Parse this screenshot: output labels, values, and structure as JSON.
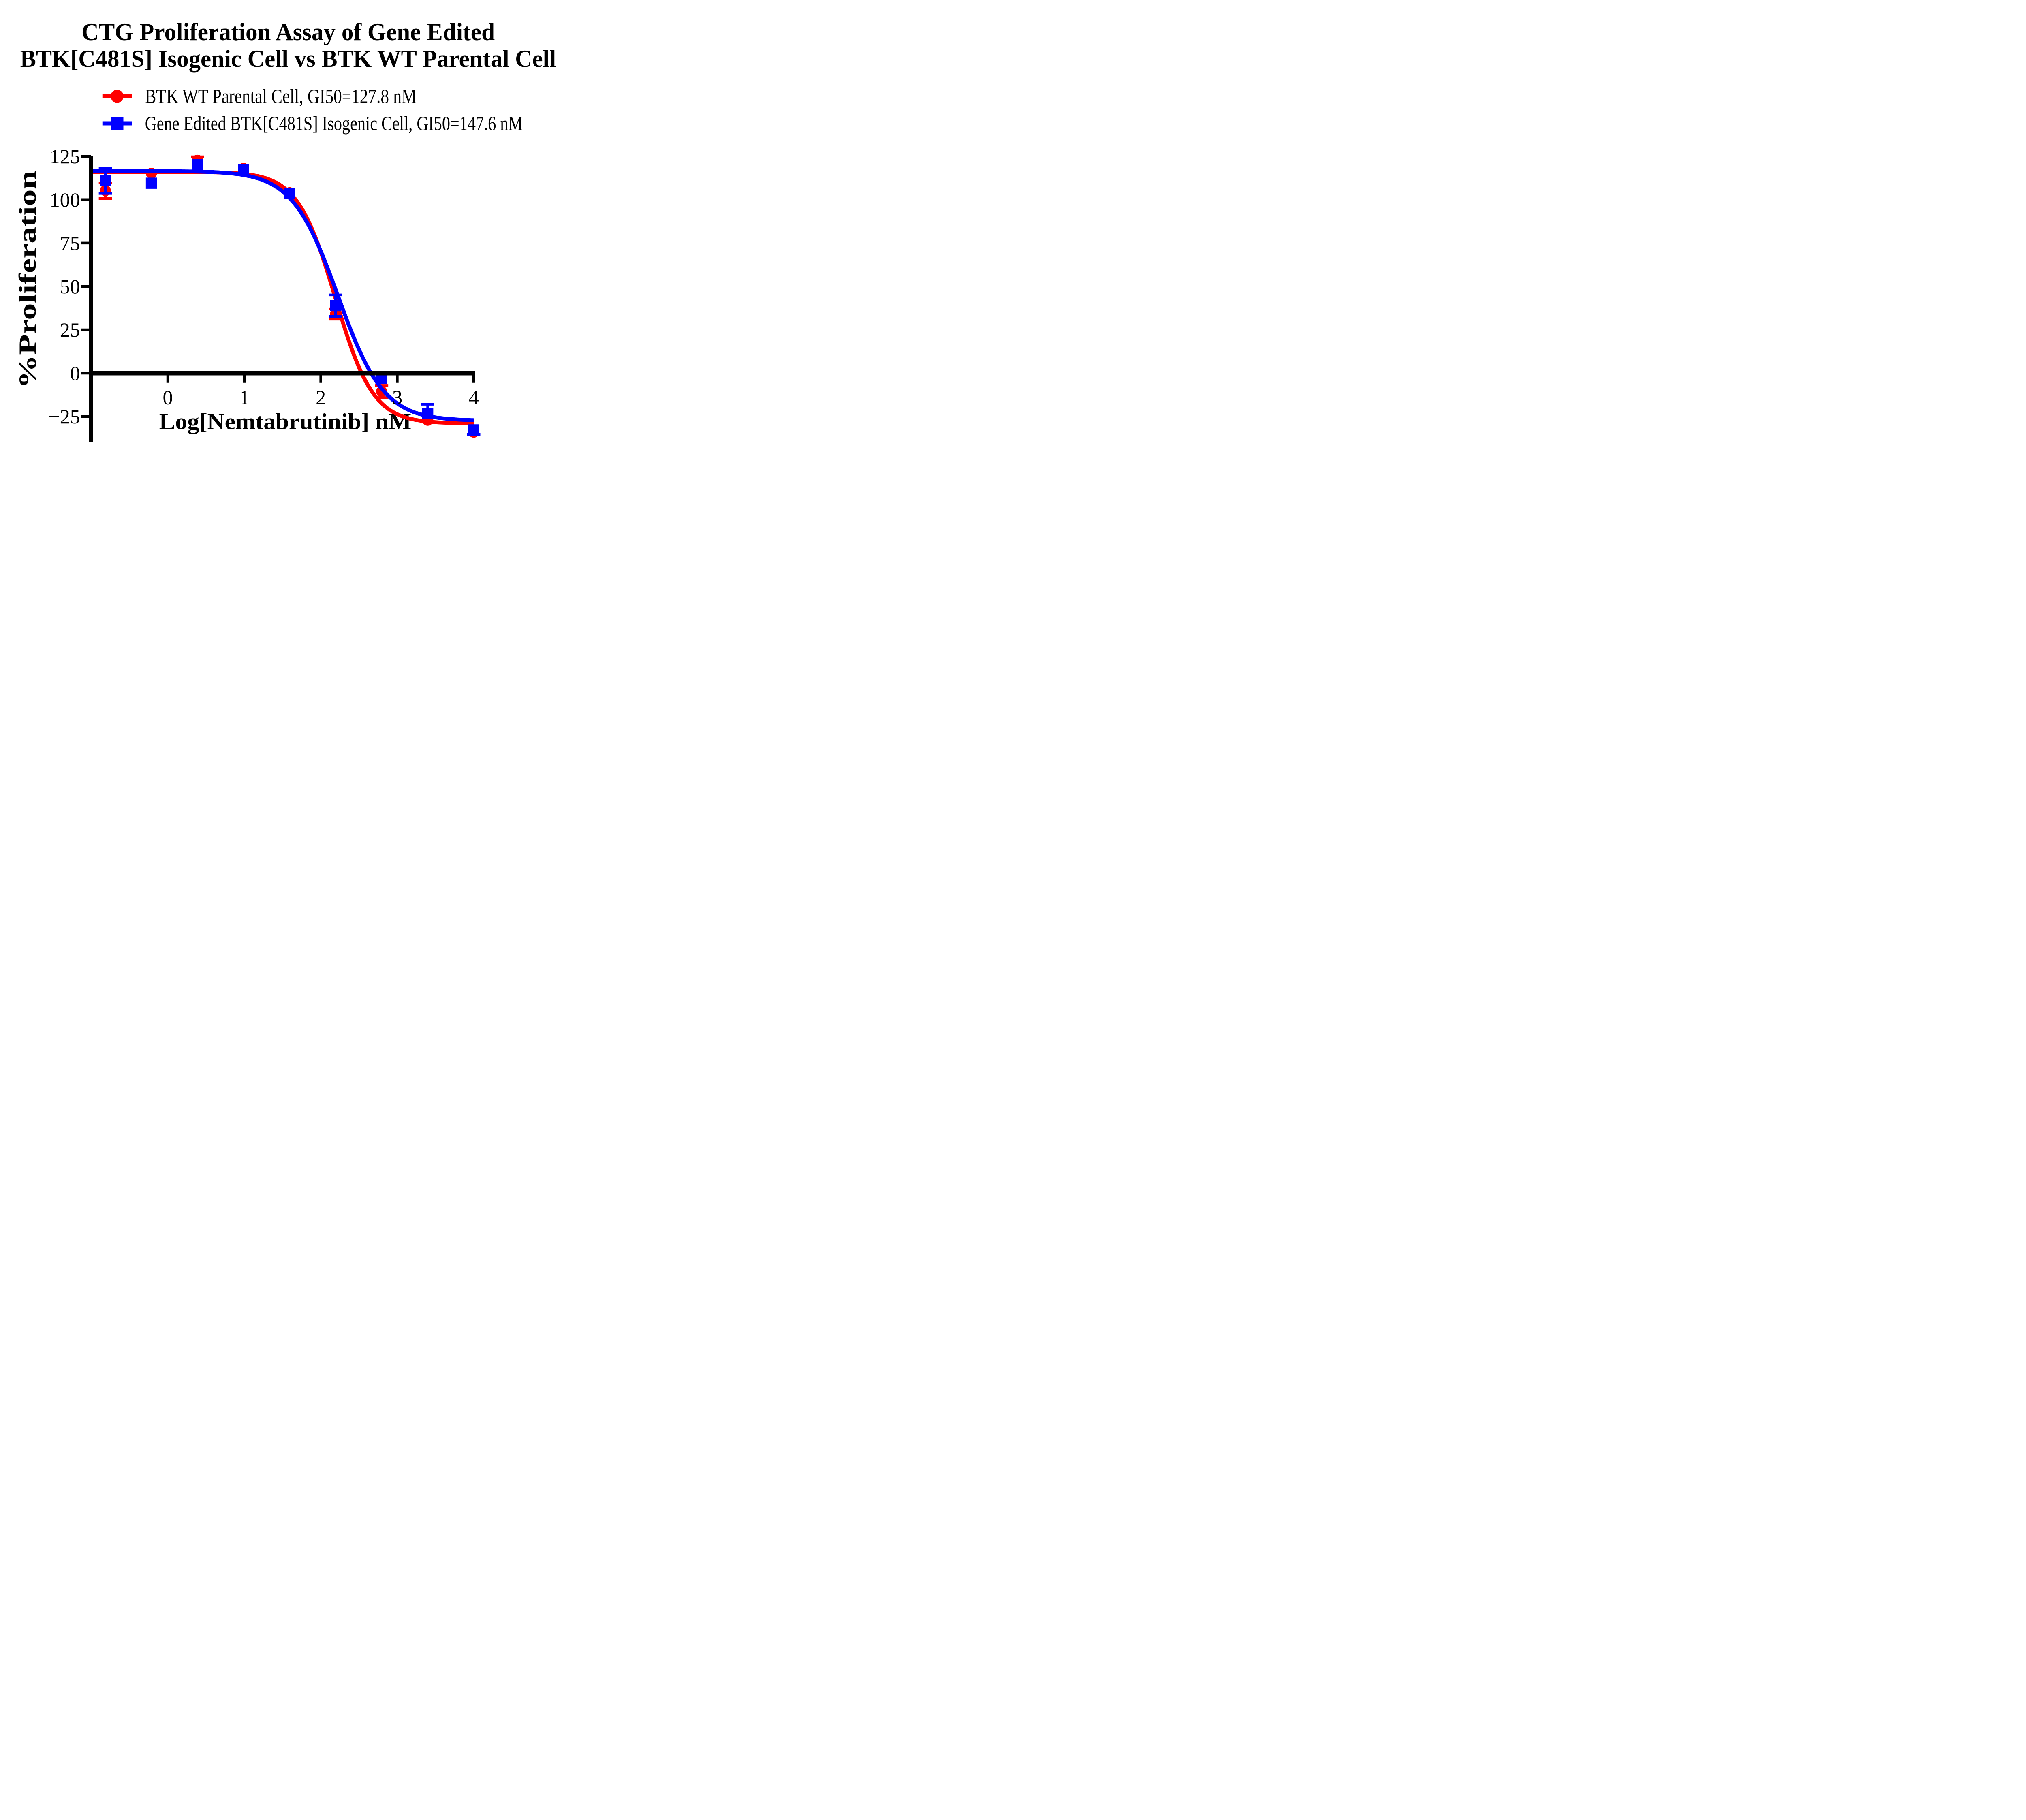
{
  "title": {
    "line1": "CTG Proliferation Assay of Gene Edited",
    "line2": "BTK[C481S] Isogenic Cell vs BTK WT Parental Cell"
  },
  "legend": {
    "items": [
      {
        "label": "BTK WT Parental Cell, GI50=127.8 nM",
        "color": "#FF0000",
        "marker": "circle"
      },
      {
        "label": "Gene Edited BTK[C481S] Isogenic Cell, GI50=147.6 nM",
        "color": "#0000FF",
        "marker": "square"
      }
    ]
  },
  "chart_data": {
    "type": "line",
    "title": "CTG Proliferation Assay of Gene Edited BTK[C481S] Isogenic Cell vs BTK WT Parental Cell",
    "xlabel": "Log[Nemtabrutinib] nM",
    "ylabel": "%Proliferation",
    "xlim": [
      -1.0,
      4.0
    ],
    "ylim": [
      -25,
      125
    ],
    "grid": false,
    "legend_position": "top-left",
    "xticks": [
      0,
      1,
      2,
      3,
      4
    ],
    "xtick_labels": [
      "0",
      "1",
      "2",
      "3",
      "4"
    ],
    "yticks": [
      125,
      100,
      75,
      50,
      25,
      0,
      -25
    ],
    "ytick_labels": [
      "125",
      "100",
      "75",
      "50",
      "25",
      "0",
      "−25"
    ],
    "series": [
      {
        "name": "BTK WT Parental Cell",
        "gi50_label": "GI50=127.8 nM",
        "gi50_nM": 127.8,
        "color": "#FF0000",
        "marker": "circle",
        "x": [
          -0.816,
          -0.214,
          0.388,
          0.99,
          1.592,
          2.194,
          2.796,
          3.398,
          4.0
        ],
        "y": [
          105.2,
          115.2,
          122.7,
          118.0,
          104.0,
          34.1,
          -10.6,
          -27.1,
          -34.0
        ],
        "err_up": [
          4.5,
          0,
          2.0,
          0,
          0,
          3.0,
          3.5,
          0,
          0
        ],
        "err_dn": [
          4.5,
          0,
          0,
          0,
          0,
          3.0,
          3.5,
          0,
          0
        ],
        "fit": {
          "top": 116,
          "bottom": -29,
          "log_ec50": 2.19,
          "hill": 1.75
        }
      },
      {
        "name": "Gene Edited BTK[C481S] Isogenic Cell",
        "gi50_label": "GI50=147.6 nM",
        "gi50_nM": 147.6,
        "color": "#0000FF",
        "marker": "square",
        "x": [
          -0.816,
          -0.214,
          0.388,
          0.99,
          1.592,
          2.194,
          2.796,
          3.398,
          4.0
        ],
        "y": [
          110.9,
          109.5,
          120.2,
          117.4,
          103.5,
          38.9,
          -3.0,
          -23.4,
          -32.7
        ],
        "err_up": [
          7.3,
          0,
          0,
          0,
          0,
          6.2,
          0,
          5.5,
          0
        ],
        "err_dn": [
          7.3,
          0,
          0,
          0,
          0,
          6.2,
          0,
          0,
          2.5
        ],
        "fit": {
          "top": 116.5,
          "bottom": -27.5,
          "log_ec50": 2.225,
          "hill": 1.45
        }
      }
    ]
  }
}
